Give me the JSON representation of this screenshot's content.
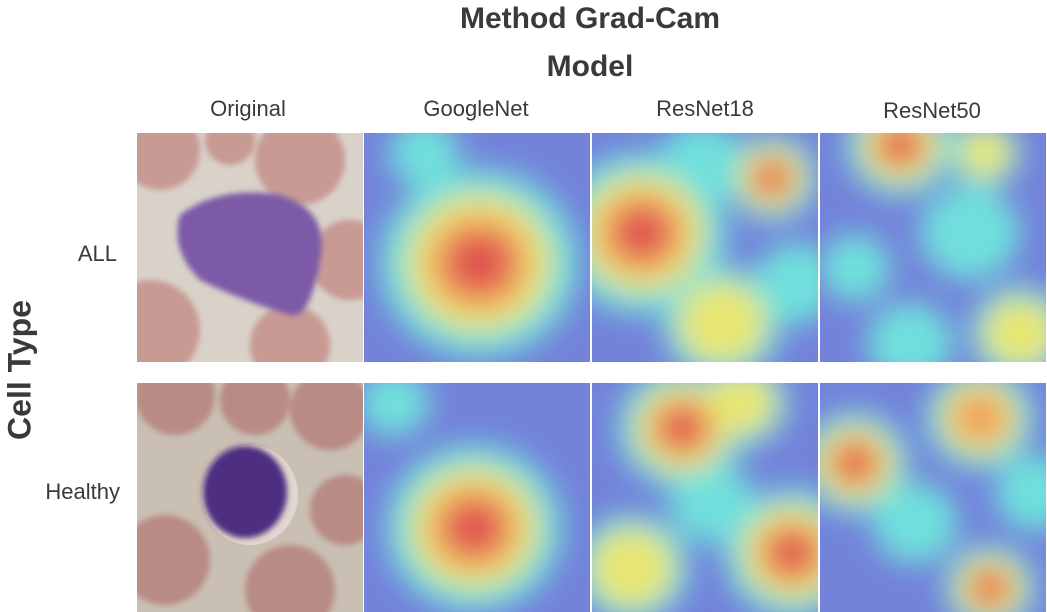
{
  "title": "Method Grad-Cam",
  "subtitle": "Model",
  "columns": [
    "Original",
    "GoogleNet",
    "ResNet18",
    "ResNet50"
  ],
  "row_axis_label": "Cell Type",
  "rows": [
    "ALL",
    "Healthy"
  ]
}
